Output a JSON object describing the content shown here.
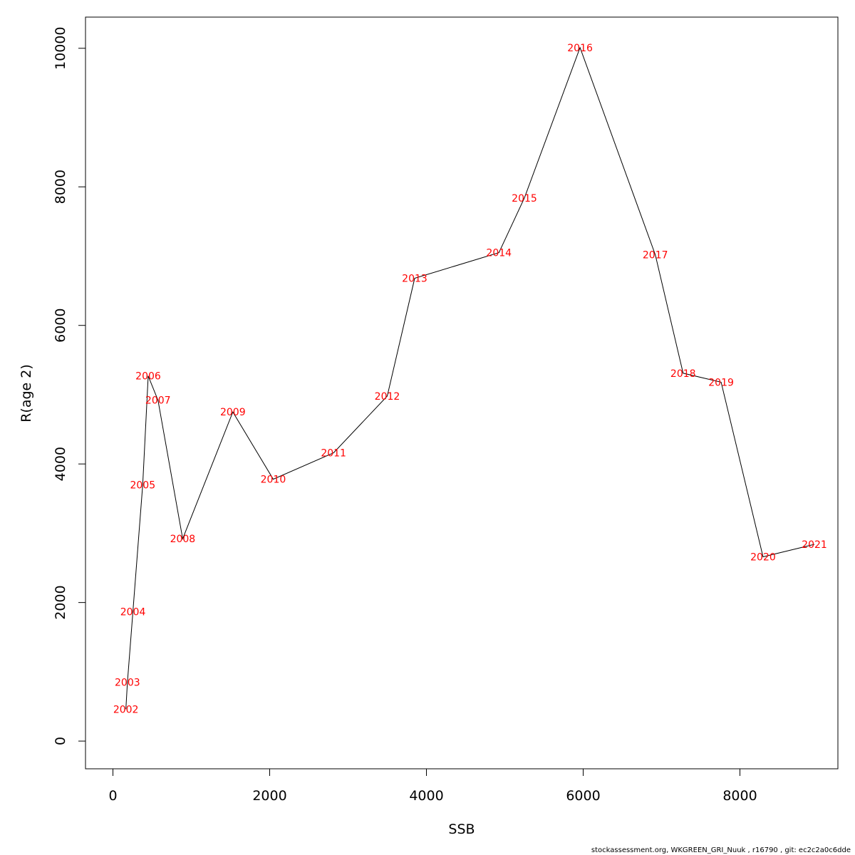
{
  "chart_data": {
    "type": "line",
    "title": "",
    "xlabel": "SSB",
    "ylabel": "R(age 2)",
    "xlim": [
      -350,
      9250
    ],
    "ylim": [
      -400,
      10450
    ],
    "xticks": [
      0,
      2000,
      4000,
      6000,
      8000
    ],
    "yticks": [
      0,
      2000,
      4000,
      6000,
      8000,
      10000
    ],
    "grid": false,
    "legend": "none",
    "line_color": "#000000",
    "label_color": "#ff0000",
    "points": [
      {
        "label": "2002",
        "x": 165,
        "y": 460
      },
      {
        "label": "2003",
        "x": 185,
        "y": 850
      },
      {
        "label": "2004",
        "x": 255,
        "y": 1870
      },
      {
        "label": "2005",
        "x": 380,
        "y": 3700
      },
      {
        "label": "2006",
        "x": 450,
        "y": 5270
      },
      {
        "label": "2007",
        "x": 575,
        "y": 4920
      },
      {
        "label": "2008",
        "x": 890,
        "y": 2920
      },
      {
        "label": "2009",
        "x": 1530,
        "y": 4750
      },
      {
        "label": "2010",
        "x": 2045,
        "y": 3780
      },
      {
        "label": "2011",
        "x": 2815,
        "y": 4160
      },
      {
        "label": "2012",
        "x": 3500,
        "y": 4980
      },
      {
        "label": "2013",
        "x": 3850,
        "y": 6680
      },
      {
        "label": "2014",
        "x": 4925,
        "y": 7050
      },
      {
        "label": "2015",
        "x": 5250,
        "y": 7840
      },
      {
        "label": "2016",
        "x": 5960,
        "y": 10010
      },
      {
        "label": "2017",
        "x": 6920,
        "y": 7020
      },
      {
        "label": "2018",
        "x": 7275,
        "y": 5310
      },
      {
        "label": "2019",
        "x": 7760,
        "y": 5180
      },
      {
        "label": "2020",
        "x": 8295,
        "y": 2660
      },
      {
        "label": "2021",
        "x": 8950,
        "y": 2840
      }
    ]
  },
  "footer": "stockassessment.org, WKGREEN_GRI_Nuuk , r16790 , git: ec2c2a0c6dde"
}
